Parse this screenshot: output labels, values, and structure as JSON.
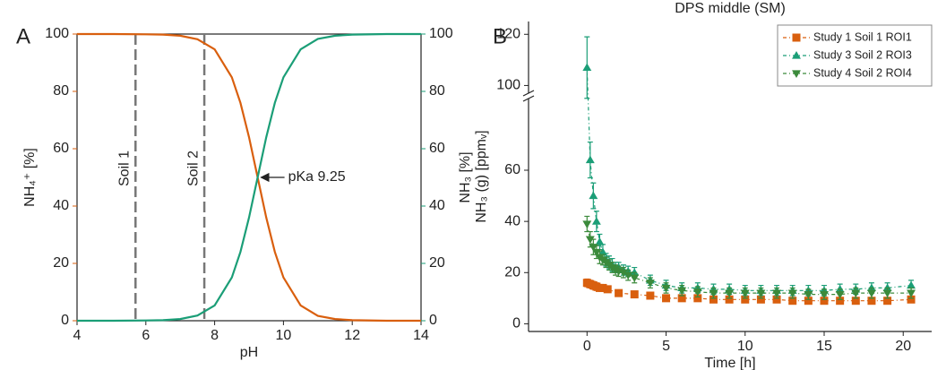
{
  "chart_data": [
    {
      "type": "line",
      "panel_label": "A",
      "x_label": "pH",
      "y_label": "NH₄⁺ [%]",
      "y2_label": "NH₃ [%]",
      "xlim": [
        4,
        14
      ],
      "xticks": [
        4,
        6,
        8,
        10,
        12,
        14
      ],
      "ylim": [
        0,
        100
      ],
      "yticks": [
        0,
        20,
        40,
        60,
        80,
        100
      ],
      "y2lim": [
        0,
        100
      ],
      "y2ticks": [
        0,
        20,
        40,
        60,
        80,
        100
      ],
      "x": [
        4,
        5,
        6,
        6.5,
        7,
        7.5,
        8,
        8.5,
        8.75,
        9,
        9.25,
        9.5,
        9.75,
        10,
        10.5,
        11,
        11.5,
        12,
        13,
        14
      ],
      "series": [
        {
          "name": "NH₄⁺",
          "color": "#d95f0e",
          "values": [
            100,
            100,
            99.9,
            99.8,
            99.4,
            98.2,
            94.7,
            84.9,
            76.0,
            64.0,
            50,
            36.0,
            24.0,
            15.1,
            5.3,
            1.7,
            0.6,
            0.2,
            0,
            0
          ]
        },
        {
          "name": "NH₃",
          "color": "#1b9e77",
          "axis": "y2",
          "values": [
            0,
            0,
            0.1,
            0.2,
            0.6,
            1.8,
            5.3,
            15.1,
            24.0,
            36.0,
            50,
            64.0,
            76.0,
            84.9,
            94.7,
            98.3,
            99.4,
            99.8,
            100,
            100
          ]
        }
      ],
      "annotations": [
        {
          "text": "Soil 1",
          "x": 5.7
        },
        {
          "text": "Soil 2",
          "x": 7.7
        },
        {
          "text": "pKa 9.25",
          "x": 9.25,
          "y": 50
        }
      ]
    },
    {
      "type": "scatter",
      "panel_label": "B",
      "title": "DPS middle (SM)",
      "x_label": "Time [h]",
      "y_label": "NH₃ (g) [ppmᵥ]",
      "xlim": [
        -3.7,
        21.8
      ],
      "xticks": [
        0,
        5,
        10,
        15,
        20
      ],
      "ylim": [
        -3,
        125
      ],
      "ybreak": [
        88,
        97
      ],
      "yticks": [
        0,
        20,
        40,
        60,
        100,
        120
      ],
      "legend": "upper right",
      "series": [
        {
          "name": "Study 1 Soil 1 ROI1",
          "color": "#d95f0e",
          "marker": "square",
          "x": [
            0,
            0.2,
            0.4,
            0.6,
            0.8,
            1,
            1.3,
            2,
            3,
            4,
            5,
            6,
            7,
            8,
            9,
            10,
            11,
            12,
            13,
            14,
            15,
            16,
            17,
            18,
            19,
            20.5
          ],
          "values": [
            16,
            15.5,
            15,
            14.5,
            14,
            14,
            13.5,
            12,
            11.5,
            11,
            10,
            10,
            10,
            9.5,
            9.5,
            9.5,
            9.5,
            9.5,
            9,
            9,
            9,
            9,
            9,
            9,
            9,
            9.5
          ],
          "errors": [
            1.5,
            1.5,
            1.5,
            1.5,
            1,
            1,
            1,
            1,
            1,
            1,
            1,
            1,
            1,
            1,
            1,
            1,
            1,
            1,
            1,
            1,
            1,
            1,
            1,
            1,
            1,
            1
          ]
        },
        {
          "name": "Study 3 Soil 2 ROI3",
          "color": "#1b9e77",
          "marker": "triangle-up",
          "x": [
            0,
            0.2,
            0.4,
            0.6,
            0.8,
            1,
            1.2,
            1.4,
            1.6,
            1.8,
            2,
            2.3,
            2.6,
            3,
            4,
            5,
            6,
            7,
            8,
            9,
            10,
            11,
            12,
            13,
            14,
            15,
            16,
            17,
            18,
            19,
            20.5
          ],
          "values": [
            107,
            64,
            50,
            40,
            32,
            28,
            25,
            24,
            23,
            22,
            22,
            21,
            20.5,
            20,
            17,
            15,
            14,
            14,
            13.5,
            13.5,
            13,
            13,
            13,
            13,
            13,
            13,
            13.5,
            13.5,
            14,
            14,
            15
          ],
          "errors": [
            12,
            7,
            5,
            4,
            3,
            3,
            2.5,
            2.5,
            2.5,
            2,
            2,
            2,
            2,
            2,
            2,
            2,
            2,
            2,
            2,
            2,
            2,
            2,
            2,
            2,
            2,
            2,
            2,
            2,
            2,
            2,
            2
          ]
        },
        {
          "name": "Study 4 Soil 2 ROI4",
          "color": "#3b8a3b",
          "marker": "triangle-down",
          "x": [
            0,
            0.2,
            0.4,
            0.6,
            0.8,
            1,
            1.2,
            1.4,
            1.6,
            1.8,
            2,
            2.3,
            2.6,
            3,
            4,
            5,
            6,
            7,
            8,
            9,
            10,
            11,
            12,
            13,
            14,
            15,
            16,
            17,
            18,
            19,
            20.5
          ],
          "values": [
            39,
            33,
            30,
            28,
            26,
            25,
            24,
            23,
            22,
            21,
            20.5,
            20,
            19,
            18,
            16,
            14,
            13,
            12.5,
            12,
            12,
            12,
            12,
            12,
            12,
            11.5,
            11.5,
            11.5,
            12,
            12,
            12,
            12
          ],
          "errors": [
            3,
            3,
            3,
            2.5,
            2.5,
            2,
            2,
            2,
            2,
            2,
            2,
            2,
            2,
            2,
            2,
            2,
            2,
            2,
            2,
            2,
            2,
            2,
            2,
            2,
            2,
            2,
            2,
            2,
            2,
            2,
            2
          ]
        }
      ]
    }
  ]
}
